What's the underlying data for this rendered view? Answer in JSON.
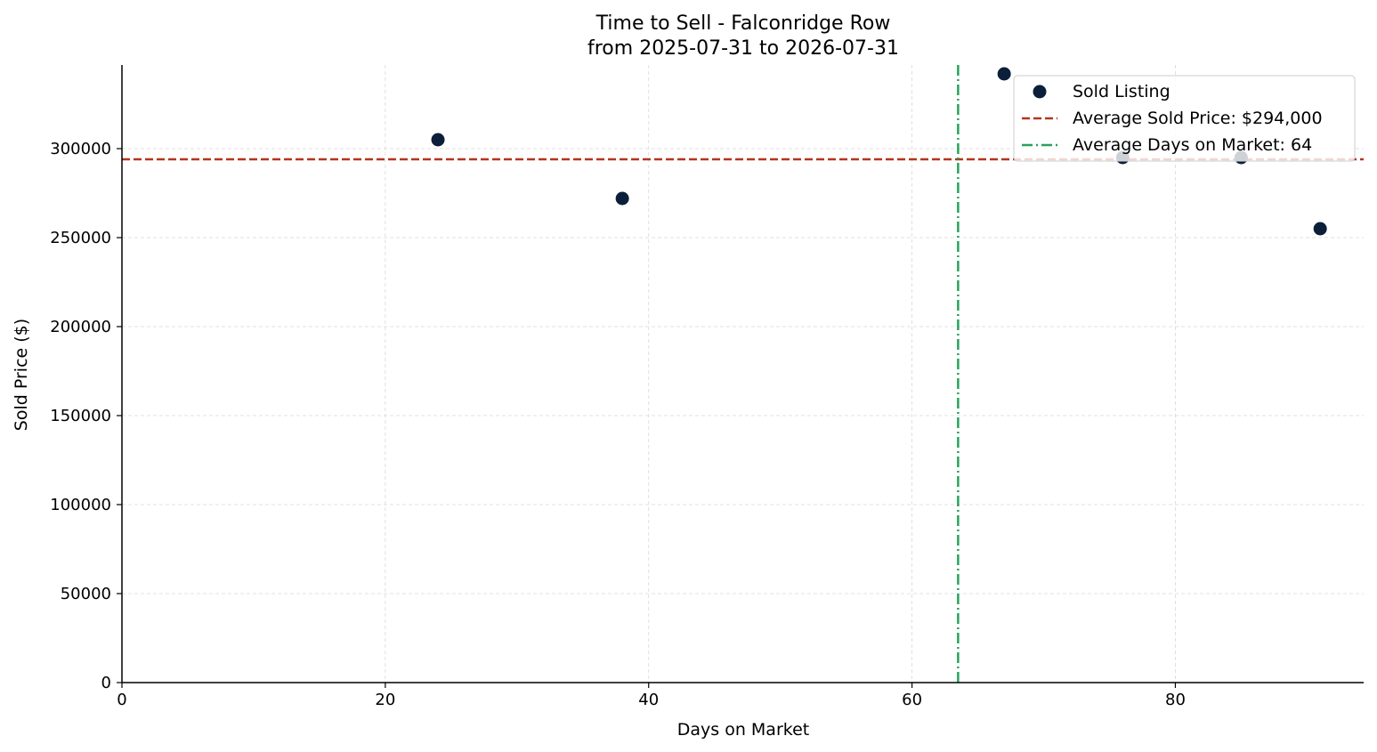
{
  "chart_data": {
    "type": "scatter",
    "title": "Time to Sell - Falconridge Row",
    "subtitle": "from 2025-07-31 to 2026-07-31",
    "xlabel": "Days on Market",
    "ylabel": "Sold Price ($)",
    "xlim": [
      0,
      94.3
    ],
    "ylim": [
      0,
      347000
    ],
    "xticks": [
      0,
      20,
      40,
      60,
      80
    ],
    "yticks": [
      0,
      50000,
      100000,
      150000,
      200000,
      250000,
      300000
    ],
    "grid": true,
    "legend_position": "top-right",
    "series": [
      {
        "name": "Sold Listing",
        "color": "#0b1f3a",
        "points": [
          {
            "x": 24,
            "y": 305000
          },
          {
            "x": 38,
            "y": 272000
          },
          {
            "x": 67,
            "y": 342000
          },
          {
            "x": 76,
            "y": 295000
          },
          {
            "x": 85,
            "y": 295000
          },
          {
            "x": 91,
            "y": 255000
          }
        ]
      }
    ],
    "reference_lines": [
      {
        "orientation": "horizontal",
        "value": 294000,
        "label": "Average Sold Price: $294,000",
        "color": "#b5341f",
        "style": "dashed"
      },
      {
        "orientation": "vertical",
        "value": 63.5,
        "label": "Average Days on Market: 64",
        "color": "#27a35a",
        "style": "dashdot"
      }
    ]
  }
}
